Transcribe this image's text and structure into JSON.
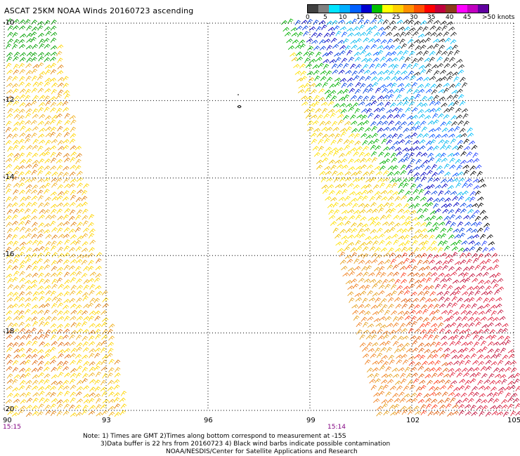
{
  "title": "ASCAT 25KM NOAA Winds 20160723 ascending",
  "colorbar": {
    "labels": [
      "0",
      "5",
      "10",
      "15",
      "20",
      "25",
      "30",
      "35",
      "40",
      "45",
      ">50 knots"
    ],
    "colors": [
      "#404040",
      "#808080",
      "#00e5ff",
      "#00b0ff",
      "#0060ff",
      "#0000d0",
      "#00c000",
      "#ffff00",
      "#ffd000",
      "#ff9000",
      "#ff5000",
      "#ff0000",
      "#c0003c",
      "#8b3a1a",
      "#ff00ff",
      "#c000c0",
      "#6000a0"
    ]
  },
  "axes": {
    "lat_labels": [
      "-10",
      "-12",
      "-14",
      "-16",
      "-18",
      "-20"
    ],
    "lon_labels": [
      "90",
      "93",
      "96",
      "99",
      "102",
      "105"
    ]
  },
  "times": [
    "15:15",
    "15:14"
  ],
  "notes": {
    "line1": "Note: 1) Times are GMT  2)Times along bottom correspond to measurement at -15S",
    "line2": "3)Data buffer is 22 hrs from 20160723  4) Black wind barbs indicate possible contamination",
    "line3": "NOAA/NESDIS/Center for Satellite Applications and Research"
  }
}
